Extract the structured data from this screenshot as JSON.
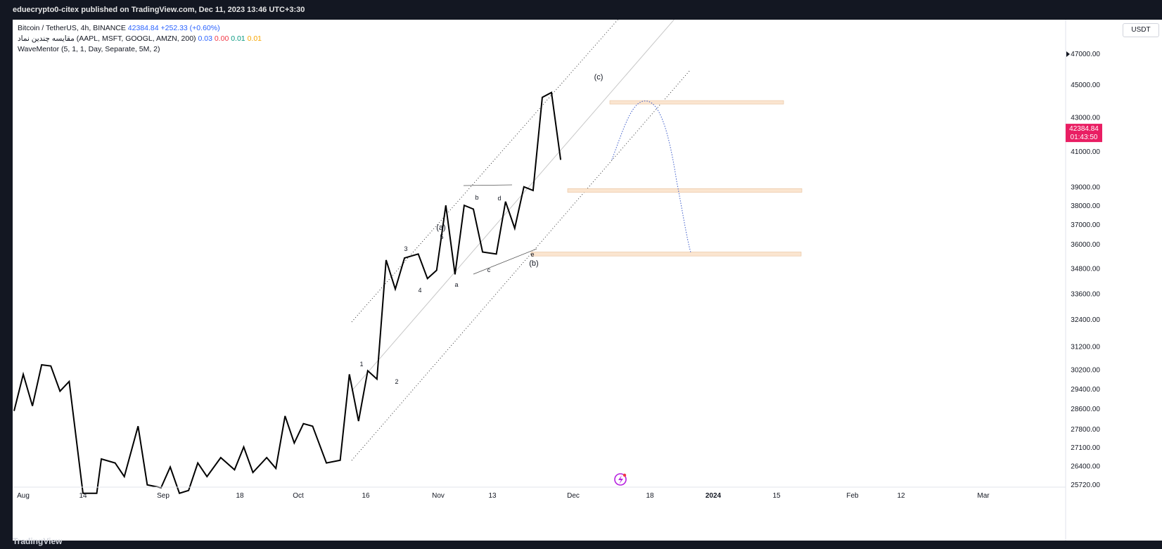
{
  "header": {
    "publisher": "eduecrypto0-citex published on TradingView.com, Dec 11, 2023 13:46 UTC+3:30"
  },
  "legend": {
    "line1_title": "Bitcoin / TetherUS, 4h, BINANCE",
    "line1_price": "42384.84",
    "line1_change": "+252.33 (+0.60%)",
    "line2_title": "مقایسه چندین نماد (AAPL, MSFT, GOOGL, AMZN, 200)",
    "line2_v1": "0.03",
    "line2_v2": "0.00",
    "line2_v3": "0.01",
    "line2_v4": "0.01",
    "line3_title": "WaveMentor (5, 1, 1, Day, Separate, 5M, 2)"
  },
  "currency_button": "USDT",
  "price_tag": {
    "price": "42384.84",
    "countdown": "01:43:50",
    "color": "#e91e63"
  },
  "footer": {
    "logo": "TradingView"
  },
  "chart_data": {
    "type": "line",
    "series": [
      {
        "values": [
          [
            "Aug 1",
            28500
          ],
          [
            "Aug 3",
            30000
          ],
          [
            "Aug 5",
            28700
          ],
          [
            "Aug 7",
            30400
          ],
          [
            "Aug 9",
            30350
          ],
          [
            "Aug 11",
            29300
          ],
          [
            "Aug 13",
            29700
          ],
          [
            "Aug 16",
            25400
          ],
          [
            "Aug 19",
            25400
          ],
          [
            "Aug 20",
            26650
          ],
          [
            "Aug 23",
            26500
          ],
          [
            "Aug 25",
            26000
          ],
          [
            "Aug 28",
            27900
          ],
          [
            "Aug 30",
            25700
          ],
          [
            "Sep 2",
            25600
          ],
          [
            "Sep 4",
            26350
          ],
          [
            "Sep 6",
            25400
          ],
          [
            "Sep 8",
            25500
          ],
          [
            "Sep 10",
            26500
          ],
          [
            "Sep 12",
            26000
          ],
          [
            "Sep 15",
            26700
          ],
          [
            "Sep 18",
            26250
          ],
          [
            "Sep 20",
            27100
          ],
          [
            "Sep 22",
            26150
          ],
          [
            "Sep 25",
            26700
          ],
          [
            "Sep 27",
            26300
          ],
          [
            "Sep 29",
            28300
          ],
          [
            "Oct 1",
            27250
          ],
          [
            "Oct 3",
            28000
          ],
          [
            "Oct 5",
            27900
          ],
          [
            "Oct 8",
            26500
          ],
          [
            "Oct 11",
            26600
          ],
          [
            "Oct 13",
            30000
          ],
          [
            "Oct 15",
            28100
          ],
          [
            "Oct 17",
            30150
          ],
          [
            "Oct 19",
            29800
          ],
          [
            "Oct 21",
            35200
          ],
          [
            "Oct 23",
            33800
          ],
          [
            "Oct 25",
            35300
          ],
          [
            "Oct 28",
            35500
          ],
          [
            "Oct 30",
            34300
          ],
          [
            "Nov 1",
            34700
          ],
          [
            "Nov 3",
            38000
          ],
          [
            "Nov 5",
            34500
          ],
          [
            "Nov 7",
            38000
          ],
          [
            "Nov 9",
            37800
          ],
          [
            "Nov 11",
            35600
          ],
          [
            "Nov 14",
            35500
          ],
          [
            "Nov 16",
            38200
          ],
          [
            "Nov 18",
            36800
          ],
          [
            "Nov 20",
            39000
          ],
          [
            "Nov 22",
            38800
          ],
          [
            "Nov 24",
            44200
          ],
          [
            "Nov 26",
            44500
          ],
          [
            "Nov 28",
            40500
          ]
        ]
      }
    ],
    "wave_labels": [
      "1",
      "2",
      "3",
      "4",
      "5",
      "(a)",
      "a",
      "b",
      "c",
      "d",
      "e",
      "(b)",
      "(c)"
    ],
    "projection": {
      "type": "dotted-curve",
      "color": "#3c5bc9",
      "peak": 43800,
      "target": 35400
    },
    "zones": [
      {
        "low": 43800,
        "high": 44000,
        "color": "#fbe5d0"
      },
      {
        "low": 38700,
        "high": 38900,
        "color": "#fbe5d0"
      },
      {
        "low": 35400,
        "high": 35600,
        "color": "#fbe5d0"
      }
    ],
    "y_ticks": [
      "47000.00",
      "45000.00",
      "43000.00",
      "41000.00",
      "39000.00",
      "38000.00",
      "37000.00",
      "36000.00",
      "34800.00",
      "33600.00",
      "32400.00",
      "31200.00",
      "30200.00",
      "29400.00",
      "28600.00",
      "27800.00",
      "27100.00",
      "26400.00",
      "25720.00"
    ],
    "x_ticks": [
      "Aug",
      "14",
      "Sep",
      "18",
      "Oct",
      "16",
      "Nov",
      "13",
      "Dec",
      "18",
      "2024",
      "15",
      "Feb",
      "12",
      "Mar"
    ],
    "y_scale": "log",
    "grid": false
  }
}
